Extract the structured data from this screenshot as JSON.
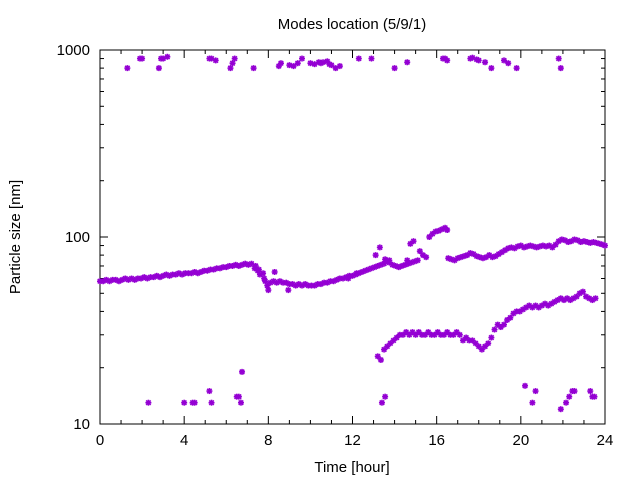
{
  "chart_data": {
    "type": "scatter",
    "title": "Modes location (5/9/1)",
    "xlabel": "Time [hour]",
    "ylabel": "Particle size [nm]",
    "xlim": [
      0,
      24
    ],
    "ylim": [
      10,
      1000
    ],
    "yscale": "log",
    "x_ticks": [
      0,
      4,
      8,
      12,
      16,
      20,
      24
    ],
    "y_ticks": [
      10,
      100,
      1000
    ],
    "grid": false,
    "marker_color": "#9400d3",
    "series": [
      {
        "name": "",
        "points": [
          [
            0.0,
            58
          ],
          [
            0.15,
            58
          ],
          [
            0.3,
            59
          ],
          [
            0.45,
            58
          ],
          [
            0.6,
            59
          ],
          [
            0.75,
            59
          ],
          [
            0.9,
            58
          ],
          [
            1.05,
            59
          ],
          [
            1.2,
            60
          ],
          [
            1.35,
            59
          ],
          [
            1.5,
            60
          ],
          [
            1.65,
            59
          ],
          [
            1.8,
            60
          ],
          [
            1.95,
            60
          ],
          [
            2.1,
            61
          ],
          [
            2.25,
            60
          ],
          [
            2.4,
            61
          ],
          [
            2.55,
            61
          ],
          [
            2.7,
            62
          ],
          [
            2.85,
            61
          ],
          [
            3.0,
            62
          ],
          [
            3.15,
            63
          ],
          [
            3.3,
            62
          ],
          [
            3.45,
            63
          ],
          [
            3.6,
            63
          ],
          [
            3.75,
            64
          ],
          [
            3.9,
            63
          ],
          [
            4.05,
            64
          ],
          [
            4.2,
            64
          ],
          [
            4.35,
            64
          ],
          [
            4.5,
            65
          ],
          [
            4.65,
            64
          ],
          [
            4.8,
            65
          ],
          [
            4.95,
            66
          ],
          [
            5.1,
            66
          ],
          [
            5.25,
            67
          ],
          [
            5.4,
            67
          ],
          [
            5.55,
            68
          ],
          [
            5.7,
            68
          ],
          [
            5.85,
            69
          ],
          [
            6.0,
            69
          ],
          [
            6.15,
            70
          ],
          [
            6.3,
            70
          ],
          [
            6.45,
            71
          ],
          [
            6.6,
            70
          ],
          [
            6.75,
            71
          ],
          [
            6.9,
            72
          ],
          [
            7.05,
            71
          ],
          [
            7.2,
            72
          ],
          [
            7.35,
            68
          ],
          [
            7.5,
            66
          ],
          [
            7.6,
            63
          ],
          [
            7.75,
            64
          ],
          [
            7.85,
            58
          ],
          [
            7.95,
            55
          ],
          [
            8.1,
            57
          ],
          [
            8.25,
            58
          ],
          [
            8.4,
            57
          ],
          [
            8.55,
            58
          ],
          [
            8.7,
            57
          ],
          [
            8.85,
            57
          ],
          [
            9.0,
            56
          ],
          [
            9.15,
            56
          ],
          [
            9.3,
            55
          ],
          [
            9.45,
            56
          ],
          [
            9.6,
            55
          ],
          [
            9.75,
            56
          ],
          [
            9.9,
            55
          ],
          [
            10.05,
            55
          ],
          [
            10.2,
            55
          ],
          [
            10.35,
            56
          ],
          [
            10.5,
            56
          ],
          [
            10.65,
            57
          ],
          [
            10.8,
            57
          ],
          [
            10.95,
            58
          ],
          [
            11.1,
            58
          ],
          [
            11.25,
            59
          ],
          [
            11.4,
            60
          ],
          [
            11.55,
            60
          ],
          [
            11.7,
            61
          ],
          [
            11.85,
            62
          ],
          [
            12.0,
            62
          ],
          [
            12.15,
            63
          ],
          [
            12.3,
            64
          ],
          [
            12.45,
            65
          ],
          [
            12.6,
            66
          ],
          [
            12.75,
            67
          ],
          [
            12.9,
            68
          ],
          [
            13.05,
            69
          ],
          [
            13.2,
            70
          ],
          [
            13.35,
            71
          ],
          [
            13.5,
            72
          ],
          [
            13.6,
            74
          ],
          [
            13.75,
            73
          ],
          [
            13.9,
            71
          ],
          [
            14.05,
            70
          ],
          [
            14.2,
            69
          ],
          [
            14.35,
            70
          ],
          [
            14.5,
            71
          ],
          [
            14.65,
            72
          ],
          [
            14.8,
            73
          ],
          [
            14.95,
            74
          ],
          [
            15.1,
            75
          ],
          [
            7.4,
            70
          ],
          [
            7.55,
            67
          ],
          [
            7.8,
            60
          ],
          [
            8.0,
            52
          ],
          [
            8.3,
            65
          ],
          [
            8.95,
            52
          ],
          [
            11.8,
            60
          ],
          [
            12.2,
            64
          ],
          [
            13.1,
            80
          ],
          [
            13.3,
            88
          ],
          [
            13.55,
            76
          ],
          [
            13.75,
            75
          ],
          [
            14.6,
            75
          ],
          [
            14.75,
            92
          ],
          [
            14.9,
            95
          ],
          [
            15.2,
            84
          ],
          [
            15.35,
            80
          ],
          [
            15.5,
            78
          ],
          [
            15.65,
            100
          ],
          [
            15.8,
            104
          ],
          [
            15.95,
            107
          ],
          [
            16.1,
            108
          ],
          [
            16.25,
            110
          ],
          [
            16.4,
            112
          ],
          [
            16.5,
            109
          ],
          [
            16.55,
            77
          ],
          [
            16.7,
            76
          ],
          [
            16.85,
            75
          ],
          [
            17.0,
            77
          ],
          [
            17.15,
            78
          ],
          [
            17.3,
            79
          ],
          [
            17.45,
            80
          ],
          [
            17.6,
            82
          ],
          [
            17.75,
            81
          ],
          [
            17.9,
            79
          ],
          [
            18.05,
            78
          ],
          [
            18.2,
            77
          ],
          [
            18.35,
            78
          ],
          [
            18.5,
            80
          ],
          [
            18.65,
            78
          ],
          [
            18.8,
            79
          ],
          [
            18.95,
            81
          ],
          [
            19.1,
            83
          ],
          [
            19.25,
            85
          ],
          [
            19.4,
            87
          ],
          [
            19.55,
            88
          ],
          [
            19.7,
            87
          ],
          [
            19.85,
            89
          ],
          [
            20.0,
            90
          ],
          [
            20.15,
            88
          ],
          [
            20.3,
            89
          ],
          [
            20.45,
            90
          ],
          [
            20.6,
            89
          ],
          [
            20.75,
            88
          ],
          [
            20.9,
            89
          ],
          [
            21.05,
            90
          ],
          [
            21.2,
            89
          ],
          [
            21.35,
            90
          ],
          [
            21.5,
            88
          ],
          [
            21.65,
            91
          ],
          [
            21.8,
            95
          ],
          [
            21.95,
            97
          ],
          [
            22.1,
            96
          ],
          [
            22.25,
            94
          ],
          [
            22.4,
            95
          ],
          [
            22.55,
            97
          ],
          [
            22.7,
            96
          ],
          [
            22.85,
            94
          ],
          [
            23.0,
            95
          ],
          [
            23.15,
            94
          ],
          [
            23.3,
            93
          ],
          [
            23.45,
            94
          ],
          [
            23.6,
            93
          ],
          [
            23.75,
            92
          ],
          [
            23.9,
            91
          ],
          [
            24.0,
            90
          ],
          [
            13.2,
            23
          ],
          [
            13.35,
            22
          ],
          [
            13.5,
            25
          ],
          [
            13.65,
            26
          ],
          [
            13.8,
            27
          ],
          [
            13.95,
            28
          ],
          [
            14.1,
            29
          ],
          [
            14.25,
            30
          ],
          [
            14.4,
            30
          ],
          [
            14.55,
            31
          ],
          [
            14.7,
            30
          ],
          [
            14.85,
            31
          ],
          [
            15.0,
            30
          ],
          [
            15.15,
            31
          ],
          [
            15.3,
            30
          ],
          [
            15.45,
            30
          ],
          [
            15.6,
            31
          ],
          [
            15.75,
            30
          ],
          [
            15.9,
            30
          ],
          [
            16.05,
            31
          ],
          [
            16.2,
            30
          ],
          [
            16.35,
            30
          ],
          [
            16.5,
            31
          ],
          [
            16.65,
            30
          ],
          [
            16.8,
            30
          ],
          [
            16.95,
            31
          ],
          [
            17.1,
            30
          ],
          [
            17.25,
            28
          ],
          [
            17.4,
            29
          ],
          [
            17.55,
            28
          ],
          [
            17.7,
            28
          ],
          [
            17.85,
            27
          ],
          [
            18.0,
            26
          ],
          [
            18.15,
            25
          ],
          [
            18.3,
            26
          ],
          [
            18.45,
            27
          ],
          [
            18.6,
            29
          ],
          [
            18.75,
            32
          ],
          [
            18.9,
            34
          ],
          [
            19.05,
            33
          ],
          [
            19.2,
            34
          ],
          [
            19.35,
            36
          ],
          [
            19.5,
            37
          ],
          [
            19.65,
            39
          ],
          [
            19.8,
            40
          ],
          [
            19.95,
            40
          ],
          [
            20.1,
            41
          ],
          [
            20.25,
            42
          ],
          [
            20.4,
            43
          ],
          [
            20.55,
            42
          ],
          [
            20.7,
            43
          ],
          [
            20.85,
            42
          ],
          [
            21.0,
            43
          ],
          [
            21.15,
            44
          ],
          [
            21.3,
            43
          ],
          [
            21.45,
            44
          ],
          [
            21.6,
            45
          ],
          [
            21.75,
            46
          ],
          [
            21.9,
            47
          ],
          [
            22.05,
            46
          ],
          [
            22.2,
            47
          ],
          [
            22.35,
            46
          ],
          [
            22.5,
            47
          ],
          [
            22.65,
            48
          ],
          [
            22.8,
            50
          ],
          [
            22.95,
            51
          ],
          [
            23.1,
            48
          ],
          [
            23.25,
            47
          ],
          [
            23.4,
            46
          ],
          [
            23.55,
            47
          ],
          [
            13.4,
            13
          ],
          [
            13.55,
            14
          ],
          [
            2.3,
            13
          ],
          [
            4.0,
            13
          ],
          [
            4.4,
            13
          ],
          [
            4.5,
            13
          ],
          [
            5.2,
            15
          ],
          [
            5.3,
            13
          ],
          [
            6.5,
            14
          ],
          [
            6.6,
            14
          ],
          [
            6.7,
            13
          ],
          [
            6.75,
            19
          ],
          [
            20.2,
            16
          ],
          [
            20.55,
            13
          ],
          [
            20.7,
            15
          ],
          [
            21.9,
            12
          ],
          [
            22.15,
            13
          ],
          [
            22.3,
            14
          ],
          [
            22.45,
            15
          ],
          [
            22.55,
            15
          ],
          [
            23.3,
            15
          ],
          [
            23.4,
            14
          ],
          [
            23.5,
            14
          ],
          [
            1.3,
            800
          ],
          [
            1.9,
            900
          ],
          [
            2.0,
            900
          ],
          [
            2.8,
            800
          ],
          [
            2.9,
            900
          ],
          [
            3.0,
            900
          ],
          [
            3.2,
            920
          ],
          [
            5.2,
            900
          ],
          [
            5.3,
            900
          ],
          [
            5.5,
            880
          ],
          [
            6.2,
            800
          ],
          [
            6.3,
            850
          ],
          [
            6.4,
            900
          ],
          [
            7.3,
            800
          ],
          [
            8.5,
            820
          ],
          [
            8.6,
            850
          ],
          [
            9.0,
            830
          ],
          [
            9.2,
            820
          ],
          [
            9.4,
            850
          ],
          [
            9.6,
            900
          ],
          [
            10.0,
            850
          ],
          [
            10.2,
            840
          ],
          [
            10.4,
            860
          ],
          [
            10.5,
            850
          ],
          [
            10.6,
            860
          ],
          [
            10.8,
            870
          ],
          [
            10.9,
            840
          ],
          [
            11.0,
            830
          ],
          [
            11.2,
            800
          ],
          [
            11.4,
            820
          ],
          [
            12.3,
            900
          ],
          [
            12.9,
            900
          ],
          [
            14.0,
            800
          ],
          [
            14.6,
            860
          ],
          [
            16.3,
            900
          ],
          [
            16.4,
            900
          ],
          [
            16.5,
            880
          ],
          [
            17.6,
            900
          ],
          [
            17.7,
            910
          ],
          [
            17.9,
            890
          ],
          [
            18.0,
            880
          ],
          [
            18.3,
            860
          ],
          [
            18.6,
            800
          ],
          [
            19.2,
            880
          ],
          [
            19.4,
            850
          ],
          [
            19.8,
            800
          ],
          [
            21.8,
            900
          ],
          [
            21.9,
            800
          ]
        ]
      }
    ]
  }
}
